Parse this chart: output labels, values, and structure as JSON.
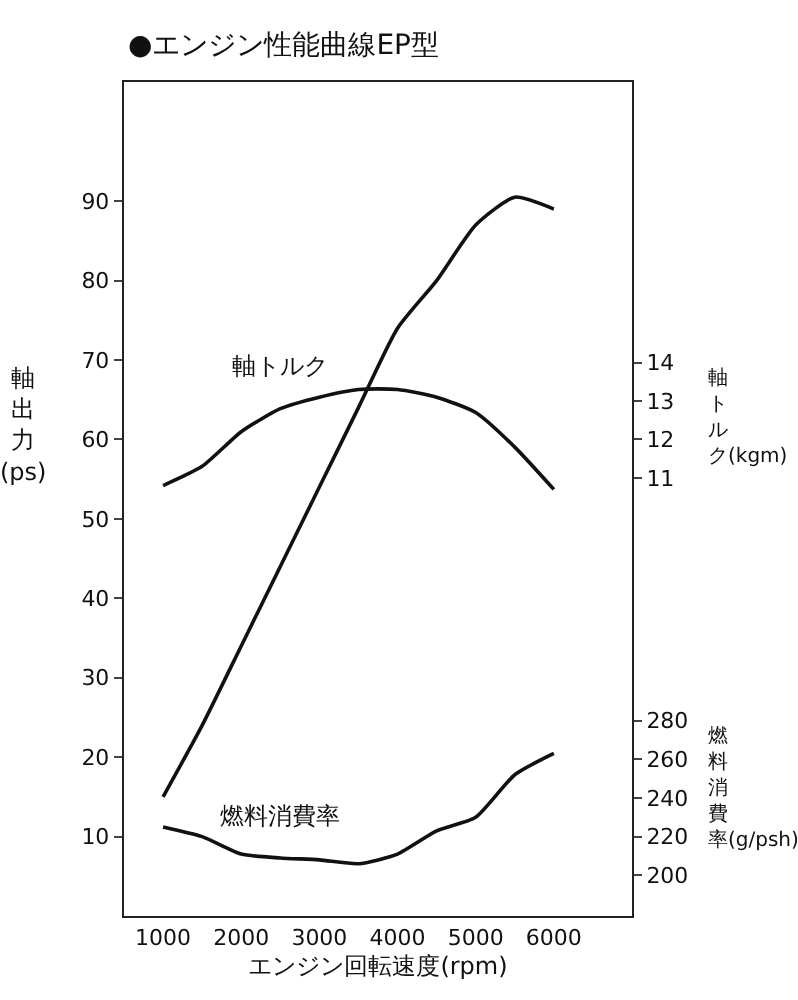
{
  "chart_data": {
    "type": "line",
    "title": "●エンジン性能曲線EP型",
    "xlabel": "エンジン回転速度(rpm)",
    "ylabel": "軸出力(ps)",
    "y2label": "軸トルク(kgm)",
    "y3label": "燃料消費率(g/psh)",
    "x": [
      1000,
      1500,
      2000,
      2500,
      3000,
      3500,
      4000,
      4500,
      5000,
      5500,
      6000
    ],
    "series": [
      {
        "color": "#111111",
        "axis": "y",
        "values": [
          15,
          24,
          34,
          44,
          54,
          64,
          74,
          80,
          87,
          90.5,
          89
        ]
      },
      {
        "name": "軸トルク",
        "color": "#111111",
        "axis": "y2",
        "values": [
          10.8,
          11.3,
          12.2,
          12.8,
          13.1,
          13.3,
          13.3,
          13.1,
          12.7,
          11.8,
          10.7
        ]
      },
      {
        "name": "燃料消費率",
        "color": "#111111",
        "axis": "y3",
        "values": [
          225,
          220,
          211,
          209,
          208,
          206,
          211,
          223,
          230,
          252,
          263
        ]
      }
    ],
    "xlim": [
      500,
      7000
    ],
    "xticks": [
      1000,
      2000,
      3000,
      4000,
      5000,
      6000
    ],
    "ylim": [
      0,
      105
    ],
    "yticks": [
      10,
      20,
      30,
      40,
      50,
      60,
      70,
      80,
      90
    ],
    "y2lim": [
      -0.4,
      21.3
    ],
    "y2ticks": [
      11,
      12,
      13,
      14
    ],
    "y3lim": [
      179,
      610
    ],
    "y3ticks": [
      200,
      220,
      240,
      260,
      280
    ],
    "legend": false,
    "marker": "none",
    "line_style": "solid"
  }
}
